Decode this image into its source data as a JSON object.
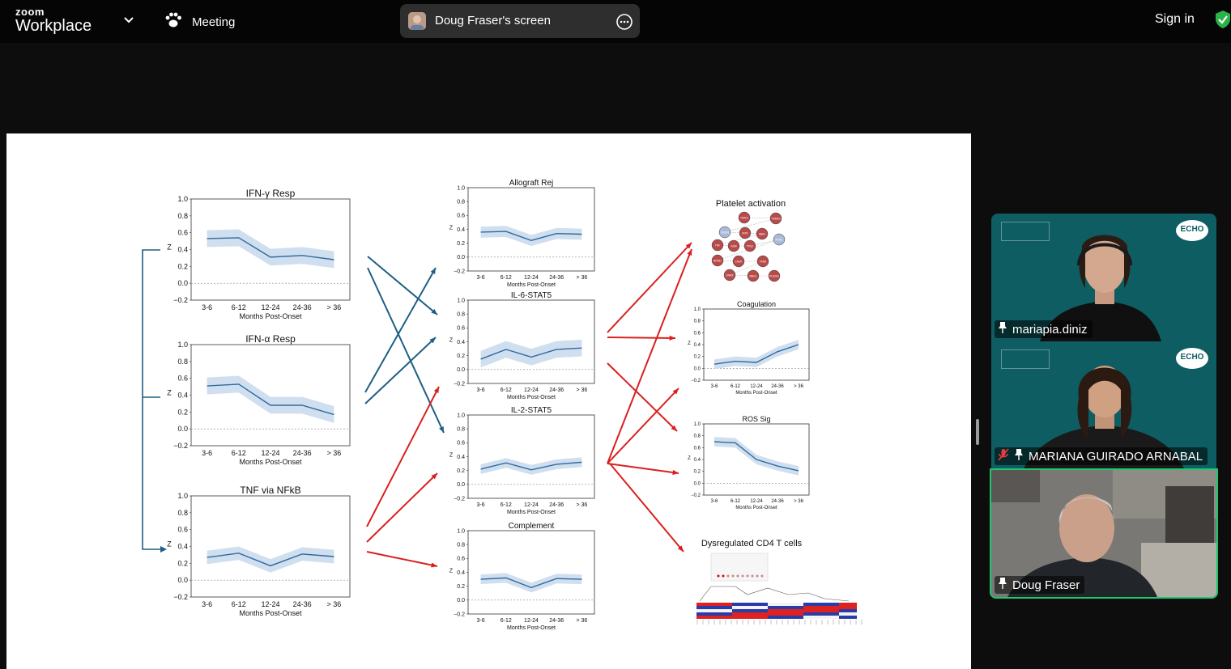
{
  "app": {
    "brand_top": "zoom",
    "brand_bottom": "Workplace"
  },
  "meeting": {
    "label": "Meeting"
  },
  "share": {
    "title": "Doug Fraser's screen"
  },
  "account": {
    "sign_in": "Sign in"
  },
  "slide": {
    "left_panels": [
      {
        "title": "IFN-γ Resp",
        "values": [
          0.53,
          0.54,
          0.31,
          0.33,
          0.28
        ],
        "band": 0.1
      },
      {
        "title": "IFN-α Resp",
        "values": [
          0.51,
          0.53,
          0.28,
          0.28,
          0.17
        ],
        "band": 0.1
      },
      {
        "title": "TNF via NFkB",
        "values": [
          0.27,
          0.32,
          0.17,
          0.31,
          0.28
        ],
        "band": 0.08
      }
    ],
    "middle_panels": [
      {
        "title": "Allograft Rej",
        "values": [
          0.36,
          0.37,
          0.24,
          0.34,
          0.33
        ],
        "band": 0.08
      },
      {
        "title": "IL-6-STAT5",
        "values": [
          0.15,
          0.29,
          0.18,
          0.29,
          0.31
        ],
        "band": 0.12
      },
      {
        "title": "IL-2-STAT5",
        "values": [
          0.22,
          0.31,
          0.21,
          0.29,
          0.32
        ],
        "band": 0.07
      },
      {
        "title": "Complement",
        "values": [
          0.3,
          0.32,
          0.18,
          0.31,
          0.3
        ],
        "band": 0.07
      }
    ],
    "right_panels": [
      {
        "title": "Coagulation",
        "values": [
          0.07,
          0.12,
          0.1,
          0.28,
          0.4
        ],
        "band": 0.08
      },
      {
        "title": "ROS Sig",
        "values": [
          0.7,
          0.68,
          0.4,
          0.29,
          0.21
        ],
        "band": 0.08
      }
    ],
    "x_ticks": [
      "3-6",
      "6-12",
      "12-24",
      "24-36",
      "> 36"
    ],
    "x_label": "Months Post-Onset",
    "y_label": "Z",
    "y_ticks": [
      "1.0",
      "0.8",
      "0.6",
      "0.4",
      "0.2",
      "0.0",
      "−0.2"
    ],
    "network_title": "Platelet activation",
    "network_nodes": [
      "TRAF3",
      "TRIM22",
      "CASP8",
      "IRF5",
      "HBB1",
      "TNF",
      "ADM",
      "TPU2",
      "IFNB1",
      "NFKB1",
      "CHUK",
      "TANK",
      "DNMX",
      "MBG1",
      "PLA2G4"
    ],
    "heatmap_title": "Dysregulated CD4 T cells",
    "colors": {
      "blue_series": "#2f6a9c",
      "blue_band": "#c8d9ec",
      "blue_arrow": "#1f5f84",
      "red_arrow": "#d9201f",
      "node_red": "#b84a4a",
      "node_blue": "#a9b9d6"
    }
  },
  "participants": [
    {
      "name": "mariapia.diniz",
      "muted": false
    },
    {
      "name": "MARIANA GUIRADO ARNABAL",
      "muted": true
    },
    {
      "name": "Doug Fraser",
      "muted": false,
      "active_speaker": true
    }
  ],
  "echo_logo": "ECHO"
}
